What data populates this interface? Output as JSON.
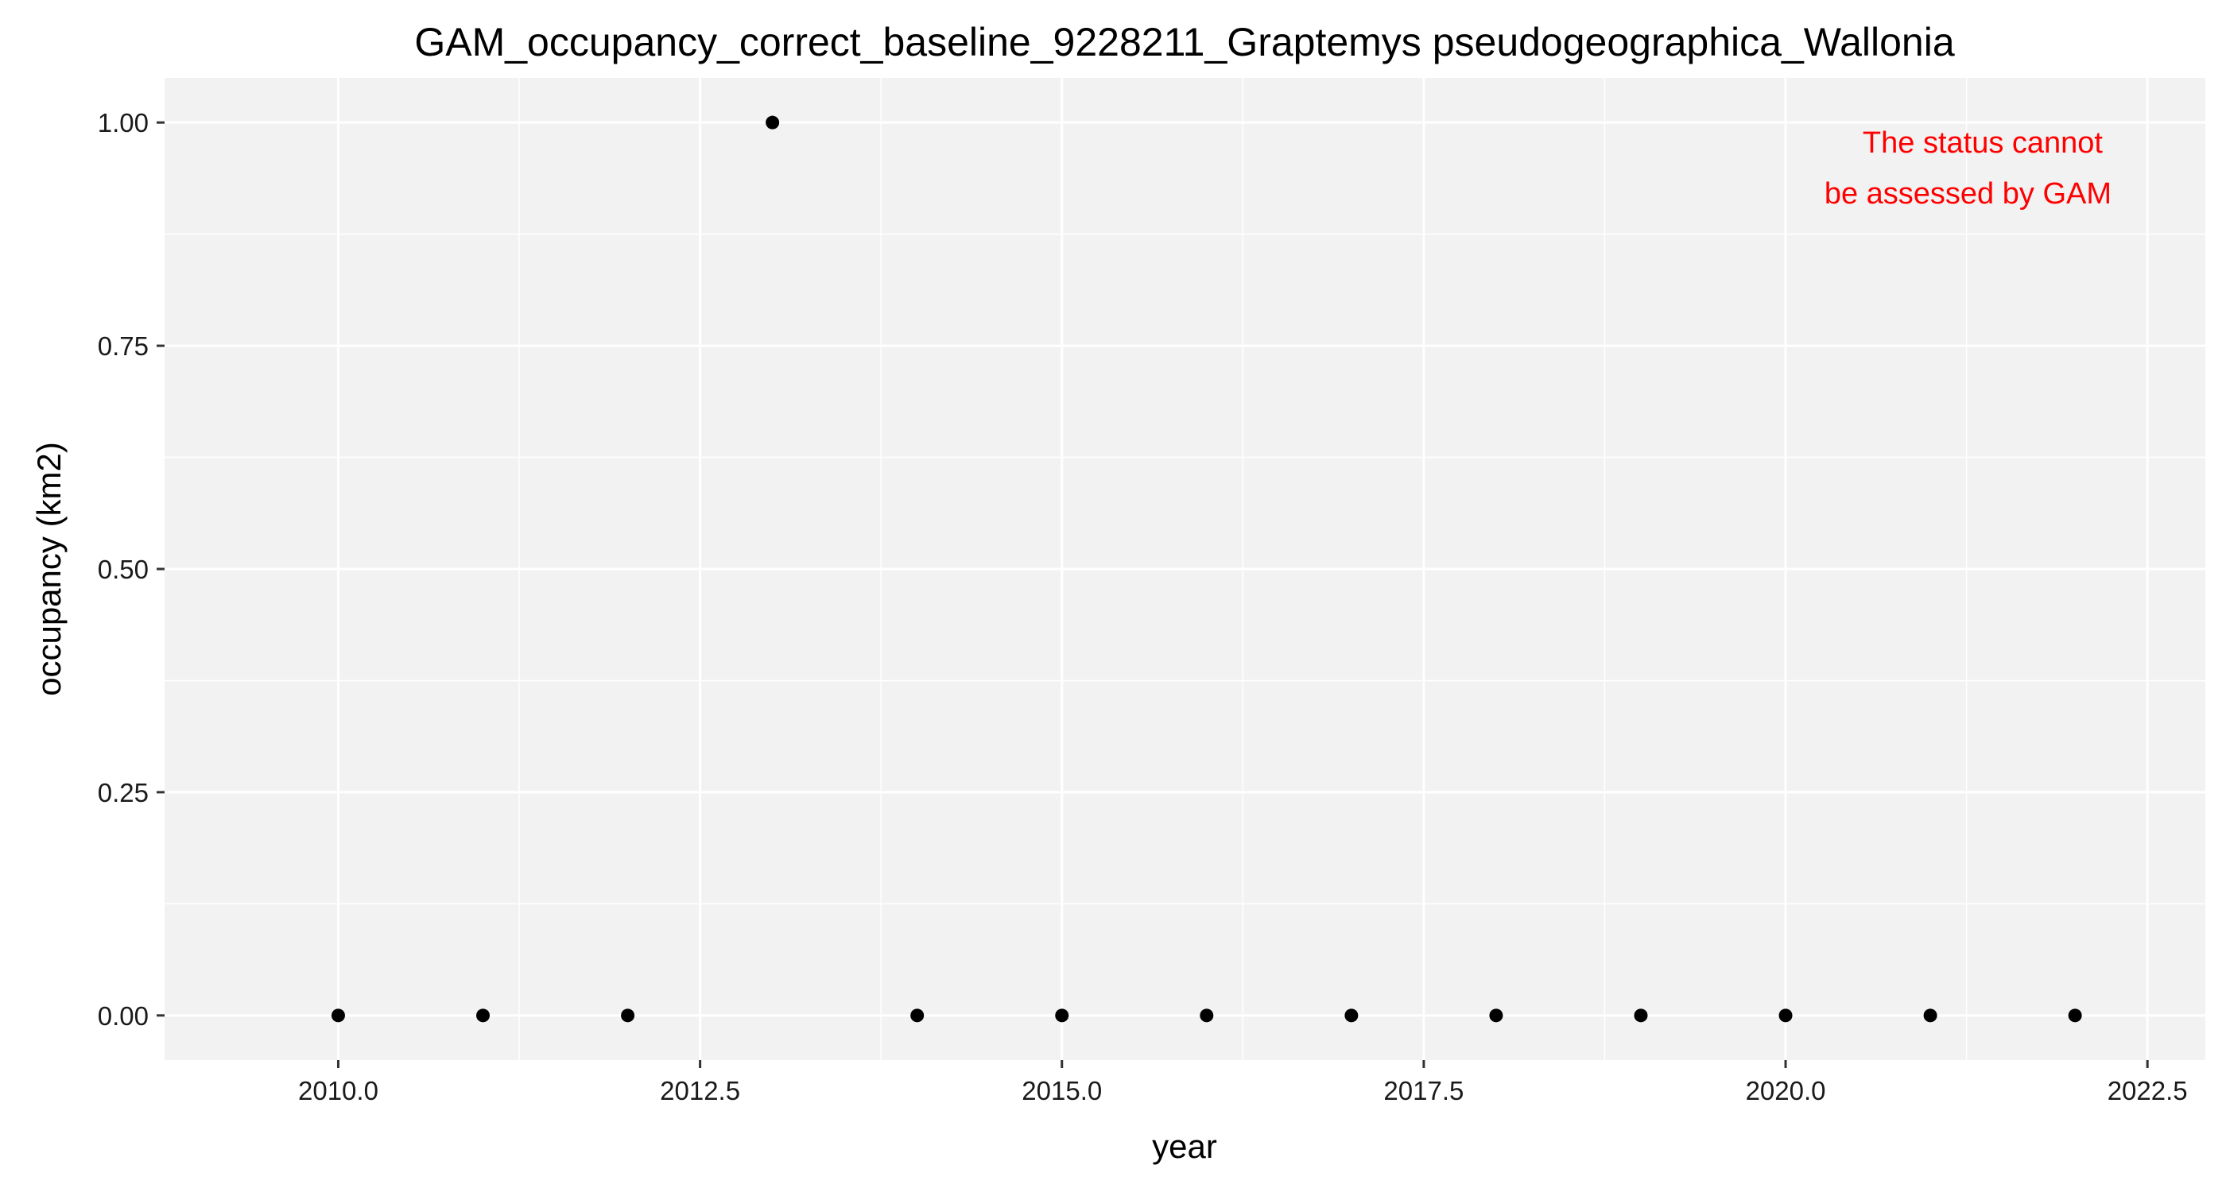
{
  "chart_data": {
    "type": "scatter",
    "title": "GAM_occupancy_correct_baseline_9228211_Graptemys pseudogeographica_Wallonia",
    "xlabel": "year",
    "ylabel": "occupancy (km2)",
    "xlim": [
      2008.8,
      2022.9
    ],
    "ylim": [
      -0.05,
      1.05
    ],
    "x_ticks": [
      2010.0,
      2012.5,
      2015.0,
      2017.5,
      2020.0,
      2022.5
    ],
    "x_tick_labels": [
      "2010.0",
      "2012.5",
      "2015.0",
      "2017.5",
      "2020.0",
      "2022.5"
    ],
    "y_ticks": [
      0,
      0.25,
      0.5,
      0.75,
      1.0
    ],
    "y_tick_labels": [
      "0.00",
      "0.25",
      "0.50",
      "0.75",
      "1.00"
    ],
    "grid": true,
    "points": [
      {
        "x": 2010,
        "y": 0
      },
      {
        "x": 2011,
        "y": 0
      },
      {
        "x": 2012,
        "y": 0
      },
      {
        "x": 2013,
        "y": 1
      },
      {
        "x": 2014,
        "y": 0
      },
      {
        "x": 2015,
        "y": 0
      },
      {
        "x": 2016,
        "y": 0
      },
      {
        "x": 2017,
        "y": 0
      },
      {
        "x": 2018,
        "y": 0
      },
      {
        "x": 2019,
        "y": 0
      },
      {
        "x": 2020,
        "y": 0
      },
      {
        "x": 2021,
        "y": 0
      },
      {
        "x": 2022,
        "y": 0
      }
    ],
    "annotation": {
      "lines": [
        "The status cannot",
        "be assessed by GAM"
      ],
      "color": "#ff0000"
    },
    "colors": {
      "panel_background": "#f2f2f2",
      "grid": "#ffffff",
      "point": "#000000"
    }
  }
}
